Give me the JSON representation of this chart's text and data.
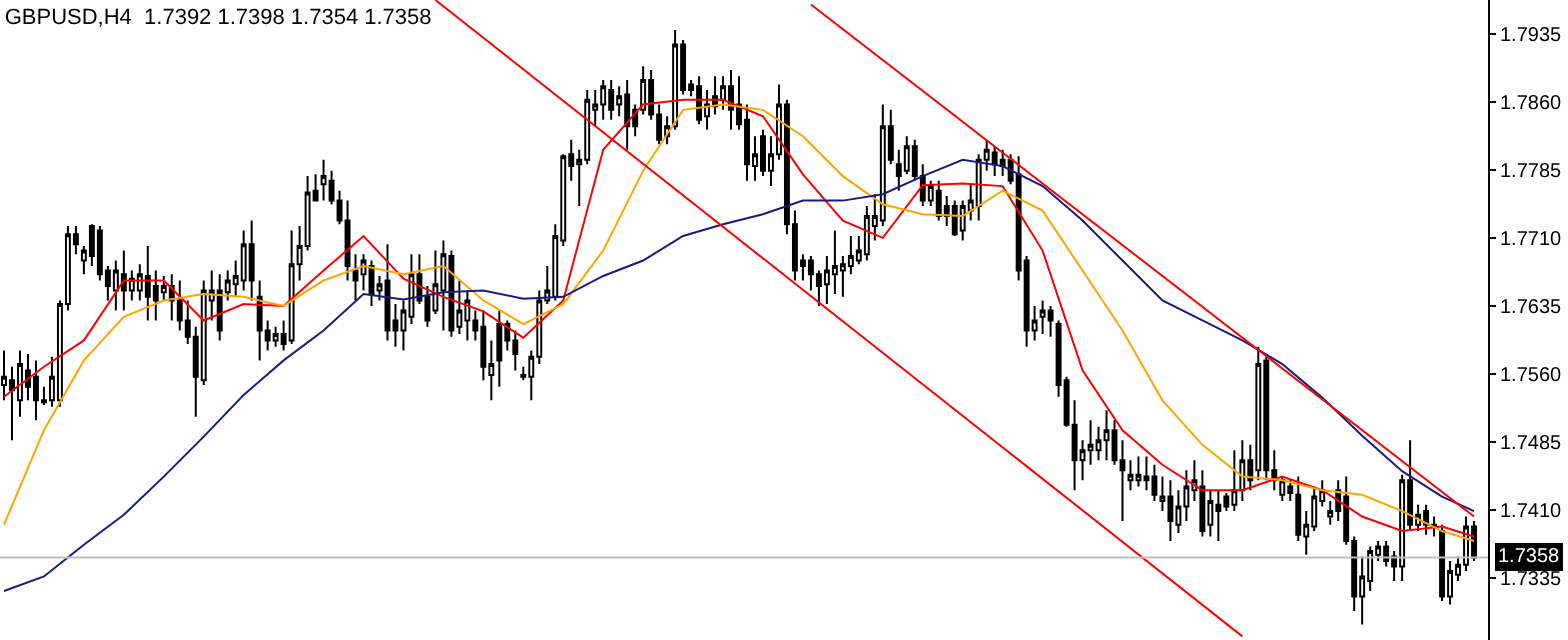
{
  "chart_data": {
    "type": "candlestick",
    "title": "GBPUSD,H4  1.7392 1.7398 1.7354 1.7358",
    "categories": [
      null,
      null,
      null,
      null,
      null,
      null,
      null,
      null,
      null,
      null,
      null,
      null,
      null,
      null,
      null,
      null,
      null,
      null,
      null,
      null,
      null,
      null,
      null,
      null,
      null,
      null,
      null,
      null,
      null,
      null,
      null,
      null,
      null,
      null,
      null,
      null,
      null,
      null,
      null,
      null,
      null,
      null,
      null,
      null,
      null,
      null,
      null,
      null,
      null,
      null,
      null,
      null,
      null,
      null,
      null,
      null,
      null,
      null,
      null,
      null,
      null,
      null,
      null,
      null,
      null,
      null,
      null,
      null,
      null,
      null,
      null,
      null,
      null,
      null,
      null,
      null,
      null,
      null,
      null,
      null,
      null,
      null,
      null,
      null,
      null,
      null,
      null,
      null,
      null,
      null,
      null,
      null,
      null,
      null,
      null,
      null,
      null,
      null,
      null,
      null,
      null,
      null,
      null,
      null,
      null,
      null,
      null,
      null,
      null,
      null,
      null,
      null,
      null,
      null,
      null,
      null,
      null,
      null,
      null,
      null,
      null,
      null,
      null,
      null,
      null,
      null,
      null,
      null,
      null,
      null,
      null,
      null,
      null,
      null,
      null,
      null,
      null,
      null,
      null,
      null,
      null,
      null,
      null,
      null,
      null,
      null,
      null,
      null,
      null,
      null,
      null,
      null,
      null,
      null,
      null,
      null,
      null,
      null,
      null,
      null,
      null,
      null,
      null,
      null,
      null,
      null,
      null,
      null,
      null,
      null,
      null,
      null,
      null,
      null,
      null,
      null,
      null,
      null,
      null,
      null,
      null,
      null,
      null,
      null,
      null
    ],
    "color": "#000000",
    "ohlc": [
      [
        1.7548,
        1.7586,
        1.7531,
        1.7557
      ],
      [
        1.7553,
        1.7568,
        1.7487,
        1.7542
      ],
      [
        1.7531,
        1.7586,
        1.7513,
        1.7571
      ],
      [
        1.7564,
        1.7582,
        1.7531,
        1.7546
      ],
      [
        1.7557,
        1.7575,
        1.7509,
        1.7531
      ],
      [
        1.7529,
        1.7546,
        1.7526,
        1.7531
      ],
      [
        1.7531,
        1.7579,
        1.7524,
        1.7557
      ],
      [
        1.7531,
        1.7641,
        1.7524,
        1.7637
      ],
      [
        1.7637,
        1.7723,
        1.763,
        1.7714
      ],
      [
        1.7714,
        1.7723,
        1.7692,
        1.7703
      ],
      [
        1.7685,
        1.7701,
        1.767,
        1.7696
      ],
      [
        1.7723,
        1.7725,
        1.7679,
        1.769
      ],
      [
        1.7718,
        1.7723,
        1.7663,
        1.767
      ],
      [
        1.7674,
        1.7679,
        1.7641,
        1.7657
      ],
      [
        1.7652,
        1.7685,
        1.763,
        1.7674
      ],
      [
        1.767,
        1.7696,
        1.763,
        1.7652
      ],
      [
        1.7652,
        1.7674,
        1.7641,
        1.7665
      ],
      [
        1.7652,
        1.7681,
        1.7641,
        1.767
      ],
      [
        1.7668,
        1.7701,
        1.7619,
        1.7645
      ],
      [
        1.7657,
        1.7674,
        1.7619,
        1.7641
      ],
      [
        1.765,
        1.7668,
        1.7641,
        1.7657
      ],
      [
        1.7657,
        1.767,
        1.7619,
        1.7641
      ],
      [
        1.7641,
        1.7663,
        1.7608,
        1.7619
      ],
      [
        1.7619,
        1.7641,
        1.7593,
        1.7601
      ],
      [
        1.7601,
        1.7612,
        1.7513,
        1.7557
      ],
      [
        1.7553,
        1.7663,
        1.7548,
        1.7652
      ],
      [
        1.7641,
        1.7674,
        1.7619,
        1.7652
      ],
      [
        1.7652,
        1.767,
        1.7597,
        1.7608
      ],
      [
        1.765,
        1.7674,
        1.7641,
        1.7663
      ],
      [
        1.7659,
        1.7685,
        1.7645,
        1.7668
      ],
      [
        1.7663,
        1.7718,
        1.7652,
        1.7703
      ],
      [
        1.7703,
        1.7729,
        1.7641,
        1.7663
      ],
      [
        1.7645,
        1.7663,
        1.7575,
        1.7608
      ],
      [
        1.7608,
        1.7619,
        1.7586,
        1.7597
      ],
      [
        1.7597,
        1.7612,
        1.759,
        1.7604
      ],
      [
        1.7604,
        1.7619,
        1.7586,
        1.7593
      ],
      [
        1.7597,
        1.7718,
        1.7593,
        1.7681
      ],
      [
        1.7681,
        1.7723,
        1.7663,
        1.7701
      ],
      [
        1.7701,
        1.7778,
        1.7696,
        1.776
      ],
      [
        1.7762,
        1.778,
        1.7751,
        1.7751
      ],
      [
        1.7769,
        1.7796,
        1.7751,
        1.7778
      ],
      [
        1.7773,
        1.7784,
        1.7747,
        1.7751
      ],
      [
        1.7751,
        1.7762,
        1.7725,
        1.7729
      ],
      [
        1.7729,
        1.7751,
        1.7663,
        1.7679
      ],
      [
        1.7674,
        1.7692,
        1.7641,
        1.7663
      ],
      [
        1.767,
        1.7692,
        1.7652,
        1.7685
      ],
      [
        1.7679,
        1.7685,
        1.7635,
        1.7648
      ],
      [
        1.7652,
        1.7668,
        1.7641,
        1.7659
      ],
      [
        1.7663,
        1.7703,
        1.7597,
        1.7608
      ],
      [
        1.7619,
        1.7637,
        1.759,
        1.7608
      ],
      [
        1.7608,
        1.7641,
        1.7586,
        1.763
      ],
      [
        1.7623,
        1.7692,
        1.7615,
        1.767
      ],
      [
        1.767,
        1.7692,
        1.7637,
        1.7641
      ],
      [
        1.7645,
        1.7657,
        1.7612,
        1.7619
      ],
      [
        1.763,
        1.7696,
        1.7626,
        1.7659
      ],
      [
        1.7652,
        1.7707,
        1.7608,
        1.7692
      ],
      [
        1.769,
        1.7696,
        1.7601,
        1.7608
      ],
      [
        1.7612,
        1.7663,
        1.7604,
        1.763
      ],
      [
        1.7619,
        1.7652,
        1.7597,
        1.7641
      ],
      [
        1.7619,
        1.763,
        1.7597,
        1.7608
      ],
      [
        1.7612,
        1.763,
        1.7553,
        1.7568
      ],
      [
        1.7559,
        1.7597,
        1.7531,
        1.7571
      ],
      [
        1.7615,
        1.763,
        1.7546,
        1.7575
      ],
      [
        1.7615,
        1.7619,
        1.7586,
        1.7597
      ],
      [
        1.7597,
        1.7608,
        1.7564,
        1.7582
      ],
      [
        1.7557,
        1.7568,
        1.7553,
        1.7559
      ],
      [
        1.7557,
        1.7586,
        1.7531,
        1.7579
      ],
      [
        1.7579,
        1.7652,
        1.7571,
        1.7641
      ],
      [
        1.7641,
        1.7679,
        1.7637,
        1.7652
      ],
      [
        1.7645,
        1.7725,
        1.7641,
        1.7712
      ],
      [
        1.7707,
        1.7802,
        1.7701,
        1.78
      ],
      [
        1.7802,
        1.7818,
        1.7773,
        1.7789
      ],
      [
        1.7791,
        1.7807,
        1.7745,
        1.7796
      ],
      [
        1.7796,
        1.7873,
        1.7791,
        1.7862
      ],
      [
        1.7851,
        1.7873,
        1.7833,
        1.7857
      ],
      [
        1.7857,
        1.7884,
        1.784,
        1.7877
      ],
      [
        1.7873,
        1.7884,
        1.784,
        1.7851
      ],
      [
        1.7857,
        1.7877,
        1.7844,
        1.7866
      ],
      [
        1.7868,
        1.7884,
        1.7807,
        1.7833
      ],
      [
        1.7851,
        1.7857,
        1.7822,
        1.7833
      ],
      [
        1.7851,
        1.7899,
        1.7846,
        1.7884
      ],
      [
        1.7884,
        1.7895,
        1.784,
        1.7846
      ],
      [
        1.7846,
        1.7857,
        1.7813,
        1.7818
      ],
      [
        1.7822,
        1.7844,
        1.7813,
        1.7833
      ],
      [
        1.7833,
        1.7939,
        1.7829,
        1.7923
      ],
      [
        1.7923,
        1.7928,
        1.7868,
        1.7873
      ],
      [
        1.7879,
        1.7884,
        1.7866,
        1.7873
      ],
      [
        1.7877,
        1.7888,
        1.7835,
        1.784
      ],
      [
        1.7844,
        1.7873,
        1.7829,
        1.7857
      ],
      [
        1.7866,
        1.7888,
        1.7846,
        1.7855
      ],
      [
        1.7862,
        1.7888,
        1.7851,
        1.7877
      ],
      [
        1.7877,
        1.7895,
        1.7829,
        1.7851
      ],
      [
        1.7857,
        1.7888,
        1.7829,
        1.7835
      ],
      [
        1.784,
        1.7857,
        1.7773,
        1.7791
      ],
      [
        1.7789,
        1.7822,
        1.7773,
        1.7802
      ],
      [
        1.7822,
        1.7829,
        1.7778,
        1.7784
      ],
      [
        1.7784,
        1.7822,
        1.7767,
        1.7802
      ],
      [
        1.7802,
        1.7879,
        1.7796,
        1.7857
      ],
      [
        1.7857,
        1.7862,
        1.7714,
        1.7725
      ],
      [
        1.7725,
        1.774,
        1.7663,
        1.7674
      ],
      [
        1.7685,
        1.7692,
        1.7663,
        1.7679
      ],
      [
        1.7685,
        1.769,
        1.7652,
        1.767
      ],
      [
        1.767,
        1.7674,
        1.7635,
        1.7657
      ],
      [
        1.7659,
        1.769,
        1.7637,
        1.7674
      ],
      [
        1.767,
        1.7718,
        1.7648,
        1.7679
      ],
      [
        1.7674,
        1.769,
        1.7645,
        1.7681
      ],
      [
        1.7679,
        1.7712,
        1.767,
        1.769
      ],
      [
        1.7685,
        1.7712,
        1.7681,
        1.7696
      ],
      [
        1.7692,
        1.7745,
        1.7685,
        1.7734
      ],
      [
        1.7723,
        1.7758,
        1.7707,
        1.7734
      ],
      [
        1.7729,
        1.7857,
        1.7723,
        1.7833
      ],
      [
        1.7833,
        1.7851,
        1.7791,
        1.7796
      ],
      [
        1.7791,
        1.7807,
        1.7762,
        1.7778
      ],
      [
        1.7784,
        1.7822,
        1.778,
        1.7811
      ],
      [
        1.7811,
        1.7818,
        1.7773,
        1.7778
      ],
      [
        1.7778,
        1.7791,
        1.7745,
        1.7751
      ],
      [
        1.7751,
        1.7773,
        1.7745,
        1.7767
      ],
      [
        1.7762,
        1.7773,
        1.7729,
        1.7734
      ],
      [
        1.7745,
        1.7756,
        1.7723,
        1.7734
      ],
      [
        1.7745,
        1.7751,
        1.7712,
        1.7714
      ],
      [
        1.7718,
        1.7751,
        1.7707,
        1.7745
      ],
      [
        1.774,
        1.7769,
        1.7729,
        1.7751
      ],
      [
        1.7745,
        1.7802,
        1.7729,
        1.7796
      ],
      [
        1.7796,
        1.7818,
        1.7784,
        1.7807
      ],
      [
        1.7804,
        1.7811,
        1.7778,
        1.7791
      ],
      [
        1.7796,
        1.7807,
        1.7778,
        1.7789
      ],
      [
        1.7796,
        1.7802,
        1.7769,
        1.7773
      ],
      [
        1.778,
        1.78,
        1.7663,
        1.7674
      ],
      [
        1.7685,
        1.769,
        1.759,
        1.7608
      ],
      [
        1.7608,
        1.7635,
        1.7597,
        1.7619
      ],
      [
        1.7623,
        1.7641,
        1.7604,
        1.763
      ],
      [
        1.763,
        1.7635,
        1.7601,
        1.7619
      ],
      [
        1.7615,
        1.7619,
        1.7535,
        1.7548
      ],
      [
        1.7553,
        1.7557,
        1.7502,
        1.7504
      ],
      [
        1.7504,
        1.7531,
        1.7432,
        1.7465
      ],
      [
        1.7465,
        1.7487,
        1.7443,
        1.7476
      ],
      [
        1.7476,
        1.7509,
        1.746,
        1.7482
      ],
      [
        1.7476,
        1.7502,
        1.7465,
        1.7487
      ],
      [
        1.7487,
        1.752,
        1.7465,
        1.7498
      ],
      [
        1.7498,
        1.7509,
        1.746,
        1.7465
      ],
      [
        1.7465,
        1.7487,
        1.7398,
        1.7454
      ],
      [
        1.7443,
        1.7465,
        1.7432,
        1.7449
      ],
      [
        1.7443,
        1.7469,
        1.7436,
        1.7449
      ],
      [
        1.7447,
        1.7469,
        1.7432,
        1.7443
      ],
      [
        1.7447,
        1.746,
        1.742,
        1.7427
      ],
      [
        1.742,
        1.7447,
        1.7409,
        1.7425
      ],
      [
        1.7425,
        1.7443,
        1.7376,
        1.7398
      ],
      [
        1.7394,
        1.7432,
        1.7385,
        1.7414
      ],
      [
        1.7414,
        1.7454,
        1.7398,
        1.7436
      ],
      [
        1.7432,
        1.7465,
        1.742,
        1.7443
      ],
      [
        1.7436,
        1.7454,
        1.7381,
        1.7387
      ],
      [
        1.7394,
        1.7432,
        1.7381,
        1.742
      ],
      [
        1.7416,
        1.7432,
        1.7376,
        1.7409
      ],
      [
        1.7425,
        1.7429,
        1.7409,
        1.7414
      ],
      [
        1.7416,
        1.7476,
        1.7409,
        1.7432
      ],
      [
        1.7432,
        1.7487,
        1.742,
        1.7465
      ],
      [
        1.7465,
        1.7482,
        1.7432,
        1.7443
      ],
      [
        1.7454,
        1.759,
        1.7443,
        1.7571
      ],
      [
        1.7575,
        1.7579,
        1.7443,
        1.7454
      ],
      [
        1.7454,
        1.7476,
        1.7432,
        1.7443
      ],
      [
        1.7427,
        1.7447,
        1.742,
        1.7443
      ],
      [
        1.7436,
        1.7443,
        1.742,
        1.7429
      ],
      [
        1.7427,
        1.7447,
        1.7376,
        1.7383
      ],
      [
        1.7381,
        1.7409,
        1.7361,
        1.7394
      ],
      [
        1.7392,
        1.7436,
        1.7387,
        1.7425
      ],
      [
        1.742,
        1.7443,
        1.7414,
        1.7432
      ],
      [
        1.7403,
        1.742,
        1.7394,
        1.7409
      ],
      [
        1.7432,
        1.7443,
        1.7398,
        1.7409
      ],
      [
        1.7425,
        1.7447,
        1.7372,
        1.7376
      ],
      [
        1.7376,
        1.7381,
        1.7299,
        1.7315
      ],
      [
        1.7315,
        1.7359,
        1.7284,
        1.7337
      ],
      [
        1.7332,
        1.737,
        1.7321,
        1.7365
      ],
      [
        1.7361,
        1.7376,
        1.7354,
        1.737
      ],
      [
        1.737,
        1.7376,
        1.7348,
        1.7354
      ],
      [
        1.7359,
        1.7365,
        1.7332,
        1.7348
      ],
      [
        1.7348,
        1.7449,
        1.7332,
        1.7443
      ],
      [
        1.7443,
        1.7487,
        1.7387,
        1.7394
      ],
      [
        1.7394,
        1.7416,
        1.7387,
        1.7405
      ],
      [
        1.7409,
        1.7416,
        1.7383,
        1.7394
      ],
      [
        1.7392,
        1.7403,
        1.7381,
        1.7394
      ],
      [
        1.7387,
        1.7394,
        1.731,
        1.7315
      ],
      [
        1.7315,
        1.7354,
        1.7306,
        1.7343
      ],
      [
        1.7339,
        1.7359,
        1.7332,
        1.735
      ],
      [
        1.735,
        1.7403,
        1.7343,
        1.7392
      ],
      [
        1.7392,
        1.7398,
        1.7354,
        1.7358
      ]
    ],
    "series": [
      {
        "type": "line",
        "color": "#ff0000",
        "values": [
          1.7535,
          null,
          null,
          null,
          null,
          1.7568,
          null,
          null,
          null,
          null,
          1.7597,
          null,
          null,
          null,
          null,
          1.7663,
          null,
          null,
          null,
          null,
          1.7663,
          null,
          null,
          null,
          null,
          1.7619,
          null,
          null,
          null,
          null,
          1.7637,
          null,
          null,
          null,
          null,
          1.7635,
          null,
          null,
          null,
          null,
          1.7674,
          null,
          null,
          null,
          null,
          1.7712,
          null,
          null,
          null,
          null,
          1.7665,
          null,
          null,
          null,
          null,
          1.7645,
          null,
          null,
          null,
          null,
          1.7629,
          null,
          null,
          null,
          null,
          1.76,
          null,
          null,
          null,
          null,
          1.7641,
          null,
          null,
          null,
          null,
          1.7807,
          null,
          null,
          null,
          null,
          1.7857,
          null,
          null,
          null,
          null,
          1.7862,
          null,
          null,
          null,
          null,
          1.7862,
          null,
          null,
          null,
          null,
          1.7844,
          null,
          null,
          null,
          null,
          1.778,
          null,
          null,
          null,
          null,
          1.7729,
          null,
          null,
          null,
          null,
          1.771,
          null,
          null,
          null,
          null,
          1.7768,
          null,
          null,
          null,
          null,
          1.777,
          null,
          null,
          null,
          null,
          1.7767,
          null,
          null,
          null,
          null,
          1.7696,
          null,
          null,
          null,
          null,
          1.7564,
          null,
          null,
          null,
          null,
          1.7498,
          null,
          null,
          null,
          null,
          1.746,
          null,
          null,
          null,
          null,
          1.7432,
          null,
          null,
          null,
          null,
          1.7432,
          null,
          null,
          null,
          null,
          1.7447,
          null,
          null,
          null,
          null,
          1.7432,
          null,
          null,
          null,
          null,
          1.7403,
          null,
          null,
          null,
          null,
          1.7387,
          null,
          null,
          null,
          null,
          1.7392,
          null,
          null,
          null,
          1.7381
        ]
      },
      {
        "type": "line",
        "color": "#ffa500",
        "values": [
          1.7394,
          null,
          null,
          null,
          null,
          1.7498,
          null,
          null,
          null,
          null,
          1.7575,
          null,
          null,
          null,
          null,
          1.7623,
          null,
          null,
          null,
          null,
          1.7641,
          null,
          null,
          null,
          null,
          1.7648,
          null,
          null,
          null,
          null,
          1.7645,
          null,
          null,
          null,
          null,
          1.7635,
          null,
          null,
          null,
          null,
          1.7663,
          null,
          null,
          null,
          null,
          1.7679,
          null,
          null,
          null,
          null,
          1.767,
          null,
          null,
          null,
          null,
          1.7679,
          null,
          null,
          null,
          null,
          1.7641,
          null,
          null,
          null,
          null,
          1.7615,
          null,
          null,
          null,
          null,
          1.7637,
          null,
          null,
          null,
          null,
          1.7696,
          null,
          null,
          null,
          null,
          1.7784,
          null,
          null,
          null,
          null,
          1.7851,
          null,
          null,
          null,
          null,
          1.7857,
          null,
          null,
          null,
          null,
          1.7851,
          null,
          null,
          null,
          null,
          1.7822,
          null,
          null,
          null,
          null,
          1.7778,
          null,
          null,
          null,
          null,
          1.7747,
          null,
          null,
          null,
          null,
          1.7736,
          null,
          null,
          null,
          null,
          1.7734,
          null,
          null,
          null,
          null,
          1.7762,
          null,
          null,
          null,
          null,
          1.774,
          null,
          null,
          null,
          null,
          1.7674,
          null,
          null,
          null,
          null,
          1.7608,
          null,
          null,
          null,
          null,
          1.7531,
          null,
          null,
          null,
          null,
          1.7482,
          null,
          null,
          null,
          null,
          1.7447,
          null,
          null,
          null,
          null,
          1.7443,
          null,
          null,
          null,
          null,
          1.7432,
          null,
          null,
          null,
          null,
          1.7427,
          null,
          null,
          null,
          null,
          1.7409,
          null,
          null,
          null,
          null,
          1.7387,
          null,
          null,
          null,
          1.7376
        ]
      },
      {
        "type": "line",
        "color": "#1a1a80",
        "values": [
          1.7321,
          null,
          null,
          null,
          null,
          1.7337,
          null,
          null,
          null,
          null,
          1.7372,
          null,
          null,
          null,
          null,
          1.7405,
          null,
          null,
          null,
          null,
          1.7447,
          null,
          null,
          null,
          null,
          1.7491,
          null,
          null,
          null,
          null,
          1.7537,
          null,
          null,
          null,
          null,
          1.7575,
          null,
          null,
          null,
          null,
          1.7608,
          null,
          null,
          null,
          null,
          1.7648,
          null,
          null,
          null,
          null,
          1.7642,
          null,
          null,
          null,
          null,
          1.765,
          null,
          null,
          null,
          null,
          1.7652,
          null,
          null,
          null,
          null,
          1.7643,
          null,
          null,
          null,
          null,
          1.7645,
          null,
          null,
          null,
          null,
          1.7668,
          null,
          null,
          null,
          null,
          1.7685,
          null,
          null,
          null,
          null,
          1.7712,
          null,
          null,
          null,
          null,
          1.7725,
          null,
          null,
          null,
          null,
          1.7736,
          null,
          null,
          null,
          null,
          1.7751,
          null,
          null,
          null,
          null,
          1.7751,
          null,
          null,
          null,
          null,
          1.7758,
          null,
          null,
          null,
          null,
          1.7778,
          null,
          null,
          null,
          null,
          1.7796,
          null,
          null,
          null,
          null,
          1.7789,
          null,
          null,
          null,
          null,
          1.7767,
          null,
          null,
          null,
          null,
          1.7729,
          null,
          null,
          null,
          null,
          1.7685,
          null,
          null,
          null,
          null,
          1.7641,
          null,
          null,
          null,
          null,
          1.7619,
          null,
          null,
          null,
          null,
          1.7597,
          null,
          null,
          null,
          null,
          1.7571,
          null,
          null,
          null,
          null,
          1.7534,
          null,
          null,
          null,
          null,
          1.7492,
          null,
          null,
          null,
          null,
          1.7453,
          null,
          null,
          null,
          null,
          1.7425,
          null,
          null,
          null,
          1.7409
        ]
      },
      {
        "type": "line",
        "color": "#ff0000",
        "values": [
          null,
          null,
          null,
          null,
          null,
          null,
          null,
          null,
          null,
          null,
          null,
          null,
          null,
          null,
          null,
          null,
          null,
          null,
          null,
          null,
          null,
          null,
          null,
          null,
          null,
          null,
          null,
          null,
          null,
          null,
          null,
          null,
          null,
          null,
          null,
          null,
          null,
          null,
          null,
          null,
          null,
          null,
          null,
          null,
          null,
          null,
          null,
          null,
          null,
          null,
          null,
          null,
          null,
          null,
          1.7972,
          null,
          null,
          null,
          null,
          null,
          null,
          null,
          null,
          null,
          null,
          null,
          null,
          null,
          null,
          null,
          null,
          null,
          null,
          null,
          null,
          null,
          null,
          null,
          null,
          null,
          null,
          null,
          null,
          null,
          null,
          null,
          null,
          null,
          null,
          null,
          null,
          null,
          null,
          null,
          null,
          null,
          null,
          null,
          null,
          null,
          null,
          null,
          null,
          null,
          null,
          null,
          null,
          null,
          null,
          null,
          null,
          null,
          null,
          null,
          null,
          null,
          null,
          null,
          null,
          null,
          null,
          null,
          null,
          null,
          null,
          null,
          null,
          null,
          null,
          null,
          null,
          null,
          null,
          null,
          null,
          null,
          null,
          null,
          null,
          null,
          null,
          null,
          null,
          null,
          null,
          null,
          null,
          null,
          null,
          null,
          null,
          null,
          null,
          null,
          null,
          1.7271,
          null,
          null,
          null,
          null,
          null,
          null,
          null,
          null,
          null,
          null,
          null,
          null,
          null,
          null,
          null,
          null,
          null,
          null,
          null,
          null,
          null,
          null,
          null,
          null,
          null,
          null,
          null,
          null,
          null
        ]
      },
      {
        "type": "line",
        "color": "#ff0000",
        "values": [
          null,
          null,
          null,
          null,
          null,
          null,
          null,
          null,
          null,
          null,
          null,
          null,
          null,
          null,
          null,
          null,
          null,
          null,
          null,
          null,
          null,
          null,
          null,
          null,
          null,
          null,
          null,
          null,
          null,
          null,
          null,
          null,
          null,
          null,
          null,
          null,
          null,
          null,
          null,
          null,
          null,
          null,
          null,
          null,
          null,
          null,
          null,
          null,
          null,
          null,
          null,
          null,
          null,
          null,
          null,
          null,
          null,
          null,
          null,
          null,
          null,
          null,
          null,
          null,
          null,
          null,
          null,
          null,
          null,
          null,
          null,
          null,
          null,
          null,
          null,
          null,
          null,
          null,
          null,
          null,
          null,
          null,
          null,
          null,
          null,
          null,
          null,
          null,
          null,
          null,
          null,
          null,
          null,
          null,
          null,
          null,
          null,
          null,
          null,
          null,
          null,
          1.7967,
          null,
          null,
          null,
          null,
          null,
          null,
          null,
          null,
          null,
          null,
          null,
          null,
          null,
          null,
          null,
          null,
          null,
          null,
          null,
          null,
          null,
          null,
          null,
          null,
          null,
          null,
          null,
          null,
          null,
          null,
          null,
          null,
          null,
          null,
          null,
          null,
          null,
          null,
          null,
          null,
          null,
          null,
          null,
          null,
          null,
          null,
          null,
          null,
          null,
          null,
          null,
          null,
          null,
          null,
          null,
          null,
          null,
          null,
          null,
          null,
          null,
          null,
          null,
          null,
          null,
          null,
          null,
          null,
          null,
          null,
          null,
          null,
          null,
          null,
          null,
          null,
          null,
          null,
          null,
          null,
          null,
          null,
          1.7403
        ]
      }
    ],
    "ylim": [
      1.7267,
      1.7972
    ],
    "yticks": [
      1.7335,
      {
        "value": 1.741,
        "label": "1.7410"
      },
      1.7485,
      {
        "value": 1.756,
        "label": "1.7560"
      },
      1.7635,
      {
        "value": 1.771,
        "label": "1.7710"
      },
      1.7785,
      {
        "value": 1.786,
        "label": "1.7860"
      },
      1.7935
    ],
    "ref_lines": [
      {
        "axis": "y",
        "value": 1.7358,
        "label": "1.7358",
        "color": "#c0c0c0"
      }
    ],
    "tick_labels": "y",
    "grid": false
  }
}
